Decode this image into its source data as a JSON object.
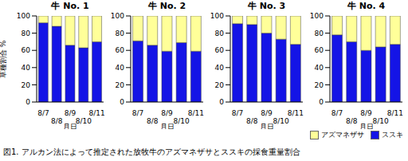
{
  "caption": "図1. アルカン法によって推定された放牧牛のアズマネザサとススキの採食重量割合",
  "chart_data": [
    {
      "type": "bar",
      "title": "牛 No. 1",
      "y_label": "草種割合 %",
      "x_label": "月日",
      "categories": [
        "8/7",
        "8/8",
        "8/9",
        "8/10",
        "8/11"
      ],
      "series": [
        {
          "name": "ススキ",
          "color": "#1414e6",
          "values": [
            92,
            88,
            66,
            63,
            70
          ]
        },
        {
          "name": "アズマネザサ",
          "color": "#ffff99",
          "values": [
            8,
            12,
            34,
            37,
            30
          ]
        }
      ],
      "stacked": true,
      "ylim": [
        0,
        100
      ],
      "yticks": [
        0,
        20,
        40,
        60,
        80,
        100
      ],
      "grid": false
    },
    {
      "type": "bar",
      "title": "牛 No. 2",
      "x_label": "月日",
      "categories": [
        "8/7",
        "8/8",
        "8/9",
        "8/10",
        "8/11"
      ],
      "series": [
        {
          "name": "ススキ",
          "color": "#1414e6",
          "values": [
            71,
            66,
            59,
            69,
            59
          ]
        },
        {
          "name": "アズマネザサ",
          "color": "#ffff99",
          "values": [
            29,
            34,
            41,
            31,
            41
          ]
        }
      ],
      "stacked": true,
      "ylim": [
        0,
        100
      ],
      "yticks": [
        0,
        20,
        40,
        60,
        80,
        100
      ],
      "grid": false
    },
    {
      "type": "bar",
      "title": "牛 No. 3",
      "x_label": "月日",
      "categories": [
        "8/7",
        "8/8",
        "8/9",
        "8/10",
        "8/11"
      ],
      "series": [
        {
          "name": "ススキ",
          "color": "#1414e6",
          "values": [
            91,
            90,
            80,
            73,
            67
          ]
        },
        {
          "name": "アズマネザサ",
          "color": "#ffff99",
          "values": [
            9,
            10,
            20,
            27,
            33
          ]
        }
      ],
      "stacked": true,
      "ylim": [
        0,
        100
      ],
      "yticks": [
        0,
        20,
        40,
        60,
        80,
        100
      ],
      "grid": false
    },
    {
      "type": "bar",
      "title": "牛 No. 4",
      "x_label": "月日",
      "categories": [
        "8/7",
        "8/8",
        "8/9",
        "8/10",
        "8/11"
      ],
      "series": [
        {
          "name": "ススキ",
          "color": "#1414e6",
          "values": [
            78,
            70,
            60,
            64,
            67
          ]
        },
        {
          "name": "アズマネザサ",
          "color": "#ffff99",
          "values": [
            22,
            30,
            40,
            36,
            33
          ]
        }
      ],
      "stacked": true,
      "ylim": [
        0,
        100
      ],
      "yticks": [
        0,
        20,
        40,
        60,
        80,
        100
      ],
      "grid": false,
      "legend": "bottom-right"
    }
  ]
}
